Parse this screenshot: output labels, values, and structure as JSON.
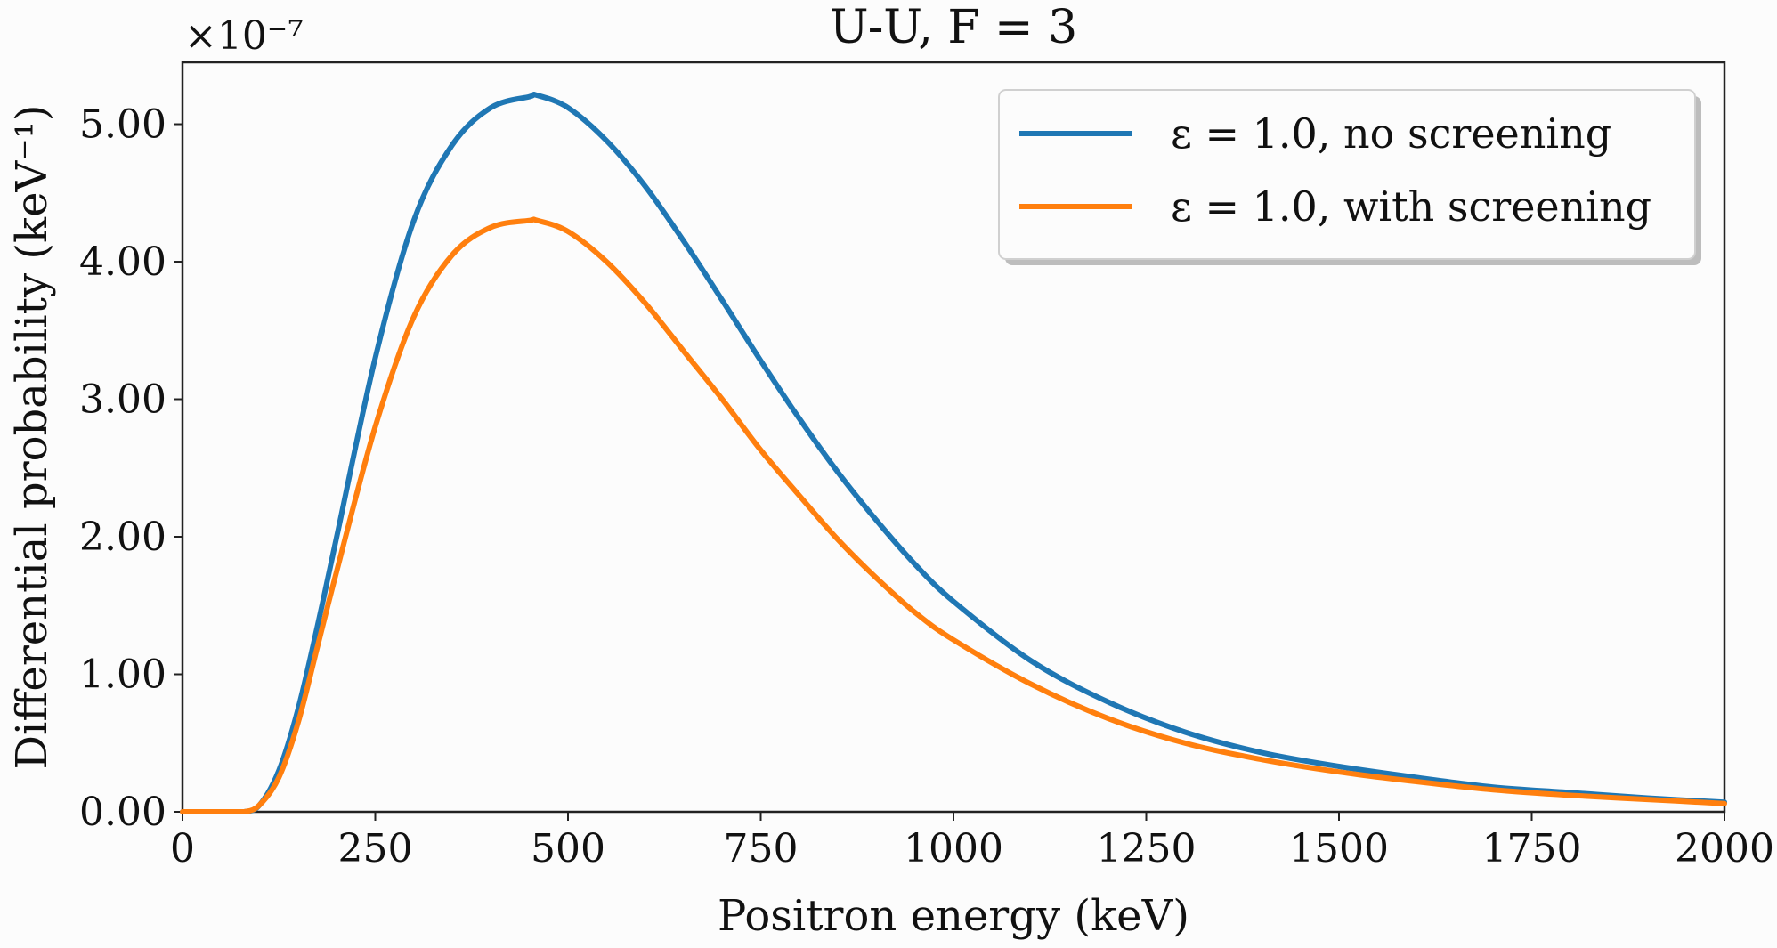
{
  "chart_data": {
    "type": "line",
    "title": "U-U, F = 3",
    "xlabel": "Positron energy (keV)",
    "ylabel": "Differential probability (keV⁻¹)",
    "y_scale_label": "×10⁻⁷",
    "xlim": [
      0,
      2000
    ],
    "ylim": [
      0,
      5.45
    ],
    "x_ticks": [
      0,
      250,
      500,
      750,
      1000,
      1250,
      1500,
      1750,
      2000
    ],
    "x_tick_labels": [
      "0",
      "250",
      "500",
      "750",
      "1000",
      "1250",
      "1500",
      "1750",
      "2000"
    ],
    "y_ticks": [
      0,
      1,
      2,
      3,
      4,
      5
    ],
    "y_tick_labels": [
      "0.00",
      "1.00",
      "2.00",
      "3.00",
      "4.00",
      "5.00"
    ],
    "grid": false,
    "legend_position": "top-right",
    "x": [
      0,
      50,
      80,
      100,
      125,
      150,
      175,
      200,
      250,
      300,
      350,
      400,
      450,
      460,
      500,
      550,
      600,
      650,
      700,
      750,
      800,
      850,
      900,
      950,
      1000,
      1100,
      1200,
      1300,
      1400,
      1500,
      1600,
      1700,
      1800,
      1900,
      2000
    ],
    "series": [
      {
        "name": "ε = 1.0, no screening",
        "color": "#1f77b4",
        "values": [
          0.0,
          0.0,
          0.0,
          0.05,
          0.3,
          0.75,
          1.35,
          2.0,
          3.3,
          4.3,
          4.85,
          5.12,
          5.2,
          5.21,
          5.12,
          4.88,
          4.55,
          4.15,
          3.72,
          3.28,
          2.86,
          2.47,
          2.12,
          1.8,
          1.53,
          1.1,
          0.8,
          0.58,
          0.43,
          0.33,
          0.25,
          0.18,
          0.14,
          0.1,
          0.07
        ]
      },
      {
        "name": "ε = 1.0, with screening",
        "color": "#ff7f0e",
        "values": [
          0.0,
          0.0,
          0.0,
          0.05,
          0.25,
          0.65,
          1.2,
          1.75,
          2.8,
          3.6,
          4.05,
          4.25,
          4.3,
          4.3,
          4.22,
          4.0,
          3.7,
          3.35,
          3.0,
          2.63,
          2.3,
          1.98,
          1.7,
          1.45,
          1.25,
          0.93,
          0.68,
          0.5,
          0.38,
          0.29,
          0.22,
          0.16,
          0.12,
          0.09,
          0.06
        ]
      }
    ]
  }
}
